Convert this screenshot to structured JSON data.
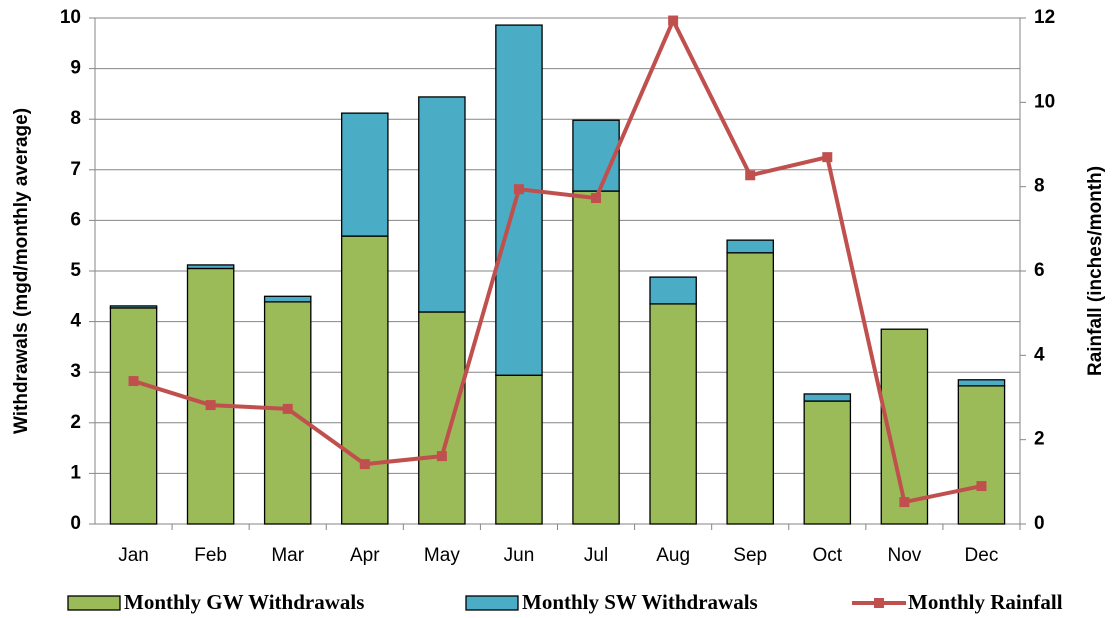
{
  "chart_data": {
    "type": "bar",
    "categories": [
      "Jan",
      "Feb",
      "Mar",
      "Apr",
      "May",
      "Jun",
      "Jul",
      "Aug",
      "Sep",
      "Oct",
      "Nov",
      "Dec"
    ],
    "series": [
      {
        "name": "Monthly GW Withdrawals",
        "color": "#9bbb59",
        "stacked": true,
        "values": [
          4.27,
          5.05,
          4.39,
          5.69,
          4.19,
          2.94,
          6.58,
          4.35,
          5.36,
          2.43,
          3.85,
          2.73
        ]
      },
      {
        "name": "Monthly SW Withdrawals",
        "color": "#4bacc6",
        "stacked": true,
        "values": [
          0.04,
          0.07,
          0.11,
          2.43,
          4.25,
          6.92,
          1.4,
          0.53,
          0.25,
          0.14,
          0,
          0.12
        ]
      },
      {
        "name": "Monthly Rainfall",
        "color": "#c0504d",
        "type": "line",
        "axis": "y2",
        "values": [
          3.39,
          2.82,
          2.73,
          1.42,
          1.61,
          7.94,
          7.73,
          11.94,
          8.27,
          8.7,
          0.52,
          0.9
        ]
      }
    ],
    "y_label": "Withdrawals (mgd/monthly average)",
    "y2_label": "Rainfall (inches/month)",
    "ylim": [
      0,
      10
    ],
    "yticks": [
      0,
      1,
      2,
      3,
      4,
      5,
      6,
      7,
      8,
      9,
      10
    ],
    "y2lim": [
      0,
      12
    ],
    "y2ticks": [
      0,
      2,
      4,
      6,
      8,
      10,
      12
    ],
    "grid": true,
    "legend": "bottom"
  }
}
